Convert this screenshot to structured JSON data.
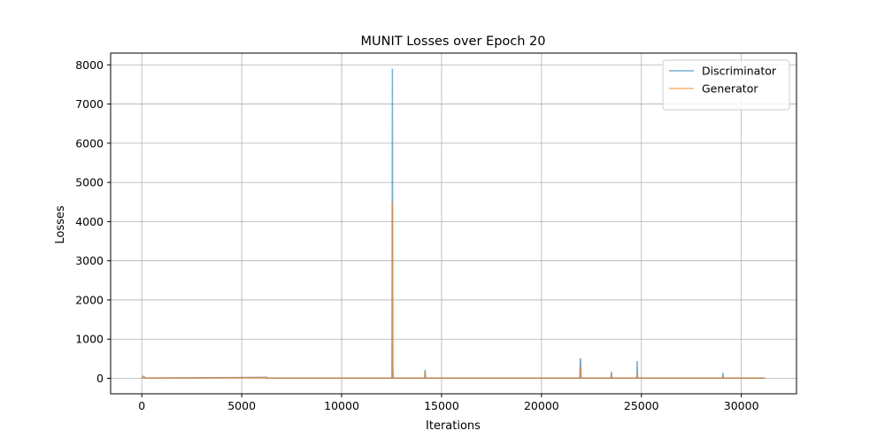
{
  "chart_data": {
    "type": "line",
    "title": "MUNIT Losses over Epoch 20",
    "xlabel": "Iterations",
    "ylabel": "Losses",
    "xlim": [
      -1560,
      32760
    ],
    "ylim": [
      -395,
      8300
    ],
    "xticks": [
      0,
      5000,
      10000,
      15000,
      20000,
      25000,
      30000
    ],
    "yticks": [
      0,
      1000,
      2000,
      3000,
      4000,
      5000,
      6000,
      7000,
      8000
    ],
    "grid": true,
    "legend_position": "top-right",
    "series": [
      {
        "name": "Discriminator",
        "color": "#1f77b4",
        "x": [
          0,
          100,
          150,
          200,
          6250,
          6260,
          12520,
          12540,
          12560,
          12580,
          14160,
          14170,
          14180,
          14200,
          21920,
          21940,
          21960,
          21980,
          23480,
          23500,
          23520,
          24770,
          24790,
          24810,
          29060,
          29080,
          29100,
          31180
        ],
        "y": [
          5,
          40,
          15,
          5,
          25,
          5,
          5,
          7900,
          300,
          5,
          5,
          210,
          190,
          5,
          5,
          510,
          470,
          5,
          5,
          170,
          5,
          5,
          440,
          5,
          5,
          140,
          5,
          5
        ]
      },
      {
        "name": "Generator",
        "color": "#ff7f0e",
        "x": [
          0,
          100,
          150,
          200,
          6250,
          6260,
          12520,
          12540,
          12560,
          12580,
          14160,
          14170,
          14180,
          14200,
          21920,
          21940,
          21960,
          21980,
          23480,
          23500,
          23520,
          24770,
          24790,
          24810,
          29060,
          29080,
          29100,
          31180
        ],
        "y": [
          10,
          60,
          20,
          10,
          20,
          10,
          10,
          4480,
          150,
          10,
          10,
          170,
          110,
          10,
          10,
          300,
          200,
          10,
          10,
          90,
          10,
          10,
          130,
          10,
          10,
          60,
          10,
          10
        ]
      }
    ]
  }
}
